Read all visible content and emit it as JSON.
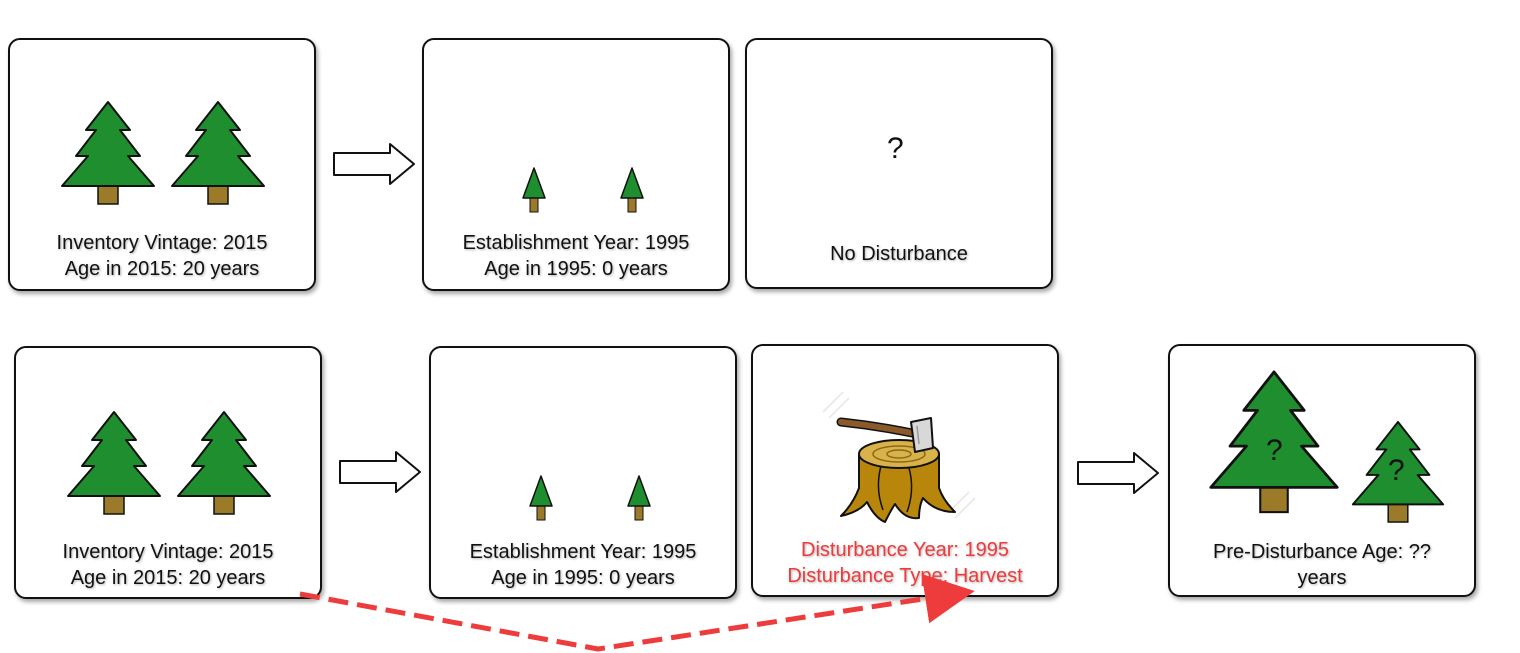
{
  "row1": {
    "inventory": {
      "line1": "Inventory Vintage: 2015",
      "line2": "Age in 2015: 20 years"
    },
    "establishment": {
      "line1": "Establishment Year: 1995",
      "line2": "Age in 1995: 0 years"
    },
    "disturbance": {
      "question": "?",
      "label": "No Disturbance"
    }
  },
  "row2": {
    "inventory": {
      "line1": "Inventory Vintage: 2015",
      "line2": "Age in 2015: 20 years"
    },
    "establishment": {
      "line1": "Establishment Year: 1995",
      "line2": "Age in 1995: 0 years"
    },
    "disturbance": {
      "line1": "Disturbance Year: 1995",
      "line2": "Disturbance Type: Harvest"
    },
    "pre_disturbance": {
      "tree_mark_large": "?",
      "tree_mark_small": "?",
      "label": "Pre-Disturbance Age: ?? years"
    }
  },
  "colors": {
    "tree_green": "#1e8e2e",
    "trunk_brown": "#9b7a2a",
    "highlight_red": "#ee3b3b",
    "stump": "#b8860b"
  }
}
